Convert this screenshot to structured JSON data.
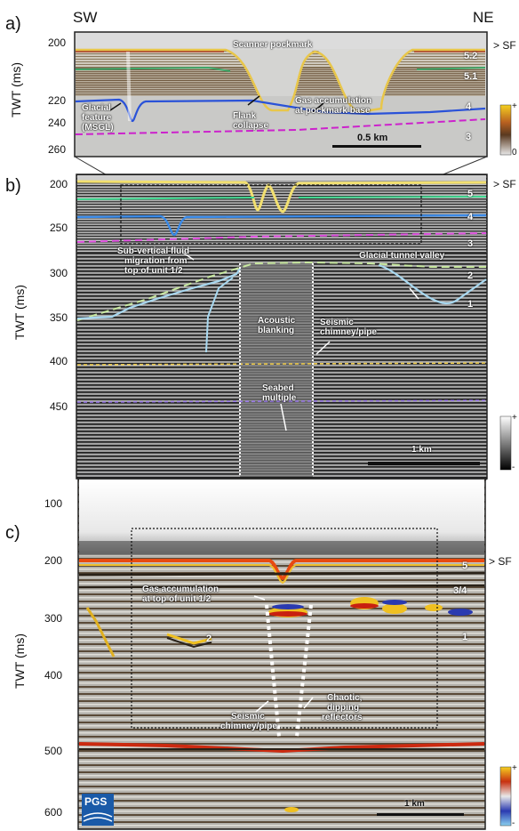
{
  "directions": {
    "left": "SW",
    "right": "NE"
  },
  "panels": {
    "a": {
      "letter": "a)",
      "ylabel": "TWT (ms)",
      "ticks": [
        "200",
        "220",
        "240",
        "260"
      ],
      "labels": {
        "scanner": "Scanner pockmark",
        "glacial1": "Glacial",
        "glacial2": "feature",
        "glacial3": "(MSGL)",
        "flank1": "Flank",
        "flank2": "collapse",
        "gas1": "Gas accumulation",
        "gas2": "at pockmark base"
      },
      "units": [
        "5.2",
        "5.1",
        "4",
        "3"
      ],
      "scale": "0.5 km",
      "sf": "SF",
      "colorbar": {
        "top": "+",
        "bottom": "0"
      }
    },
    "b": {
      "letter": "b)",
      "ylabel": "TWT (ms)",
      "ticks": [
        "200",
        "250",
        "300",
        "350",
        "400",
        "450"
      ],
      "labels": {
        "subvert1": "Sub-vertical fluid",
        "subvert2": "migration from",
        "subvert3": "top of unit 1/2",
        "tunnel": "Glacial tunnel valley",
        "blank1": "Acoustic",
        "blank2": "blanking",
        "chim1": "Seismic",
        "chim2": "chimney/pipe",
        "mult1": "Seabed",
        "mult2": "multiple"
      },
      "units": [
        "5",
        "4",
        "3",
        "2",
        "1"
      ],
      "scale": "1 km",
      "sf": "SF",
      "colorbar": {
        "top": "+",
        "bottom": "-"
      }
    },
    "c": {
      "letter": "c)",
      "ylabel": "TWT (ms)",
      "ticks": [
        "100",
        "200",
        "300",
        "400",
        "500",
        "600"
      ],
      "labels": {
        "gas1": "Gas accumulation",
        "gas2": "at top of unit 1/2",
        "u2": "2",
        "chim1": "Seismic",
        "chim2": "chimney/pipe",
        "chaos1": "Chaotic,",
        "chaos2": "dipping",
        "chaos3": "reflectors"
      },
      "units": [
        "5",
        "3/4",
        "1"
      ],
      "scale": "1 km",
      "sf": "SF",
      "logo": "PGS",
      "colorbar": {
        "top": "+",
        "bottom": "-"
      }
    }
  },
  "colors": {
    "seafloor": "#e8c64a",
    "unit5": "#3fa86a",
    "unit4": "#2a52d8",
    "unit3": "#cc22cc",
    "unit2": "#c8e8a0",
    "unit1": "#a8d8f0",
    "redReflector": "#cc2a10",
    "logo": "#1a5aa8"
  }
}
